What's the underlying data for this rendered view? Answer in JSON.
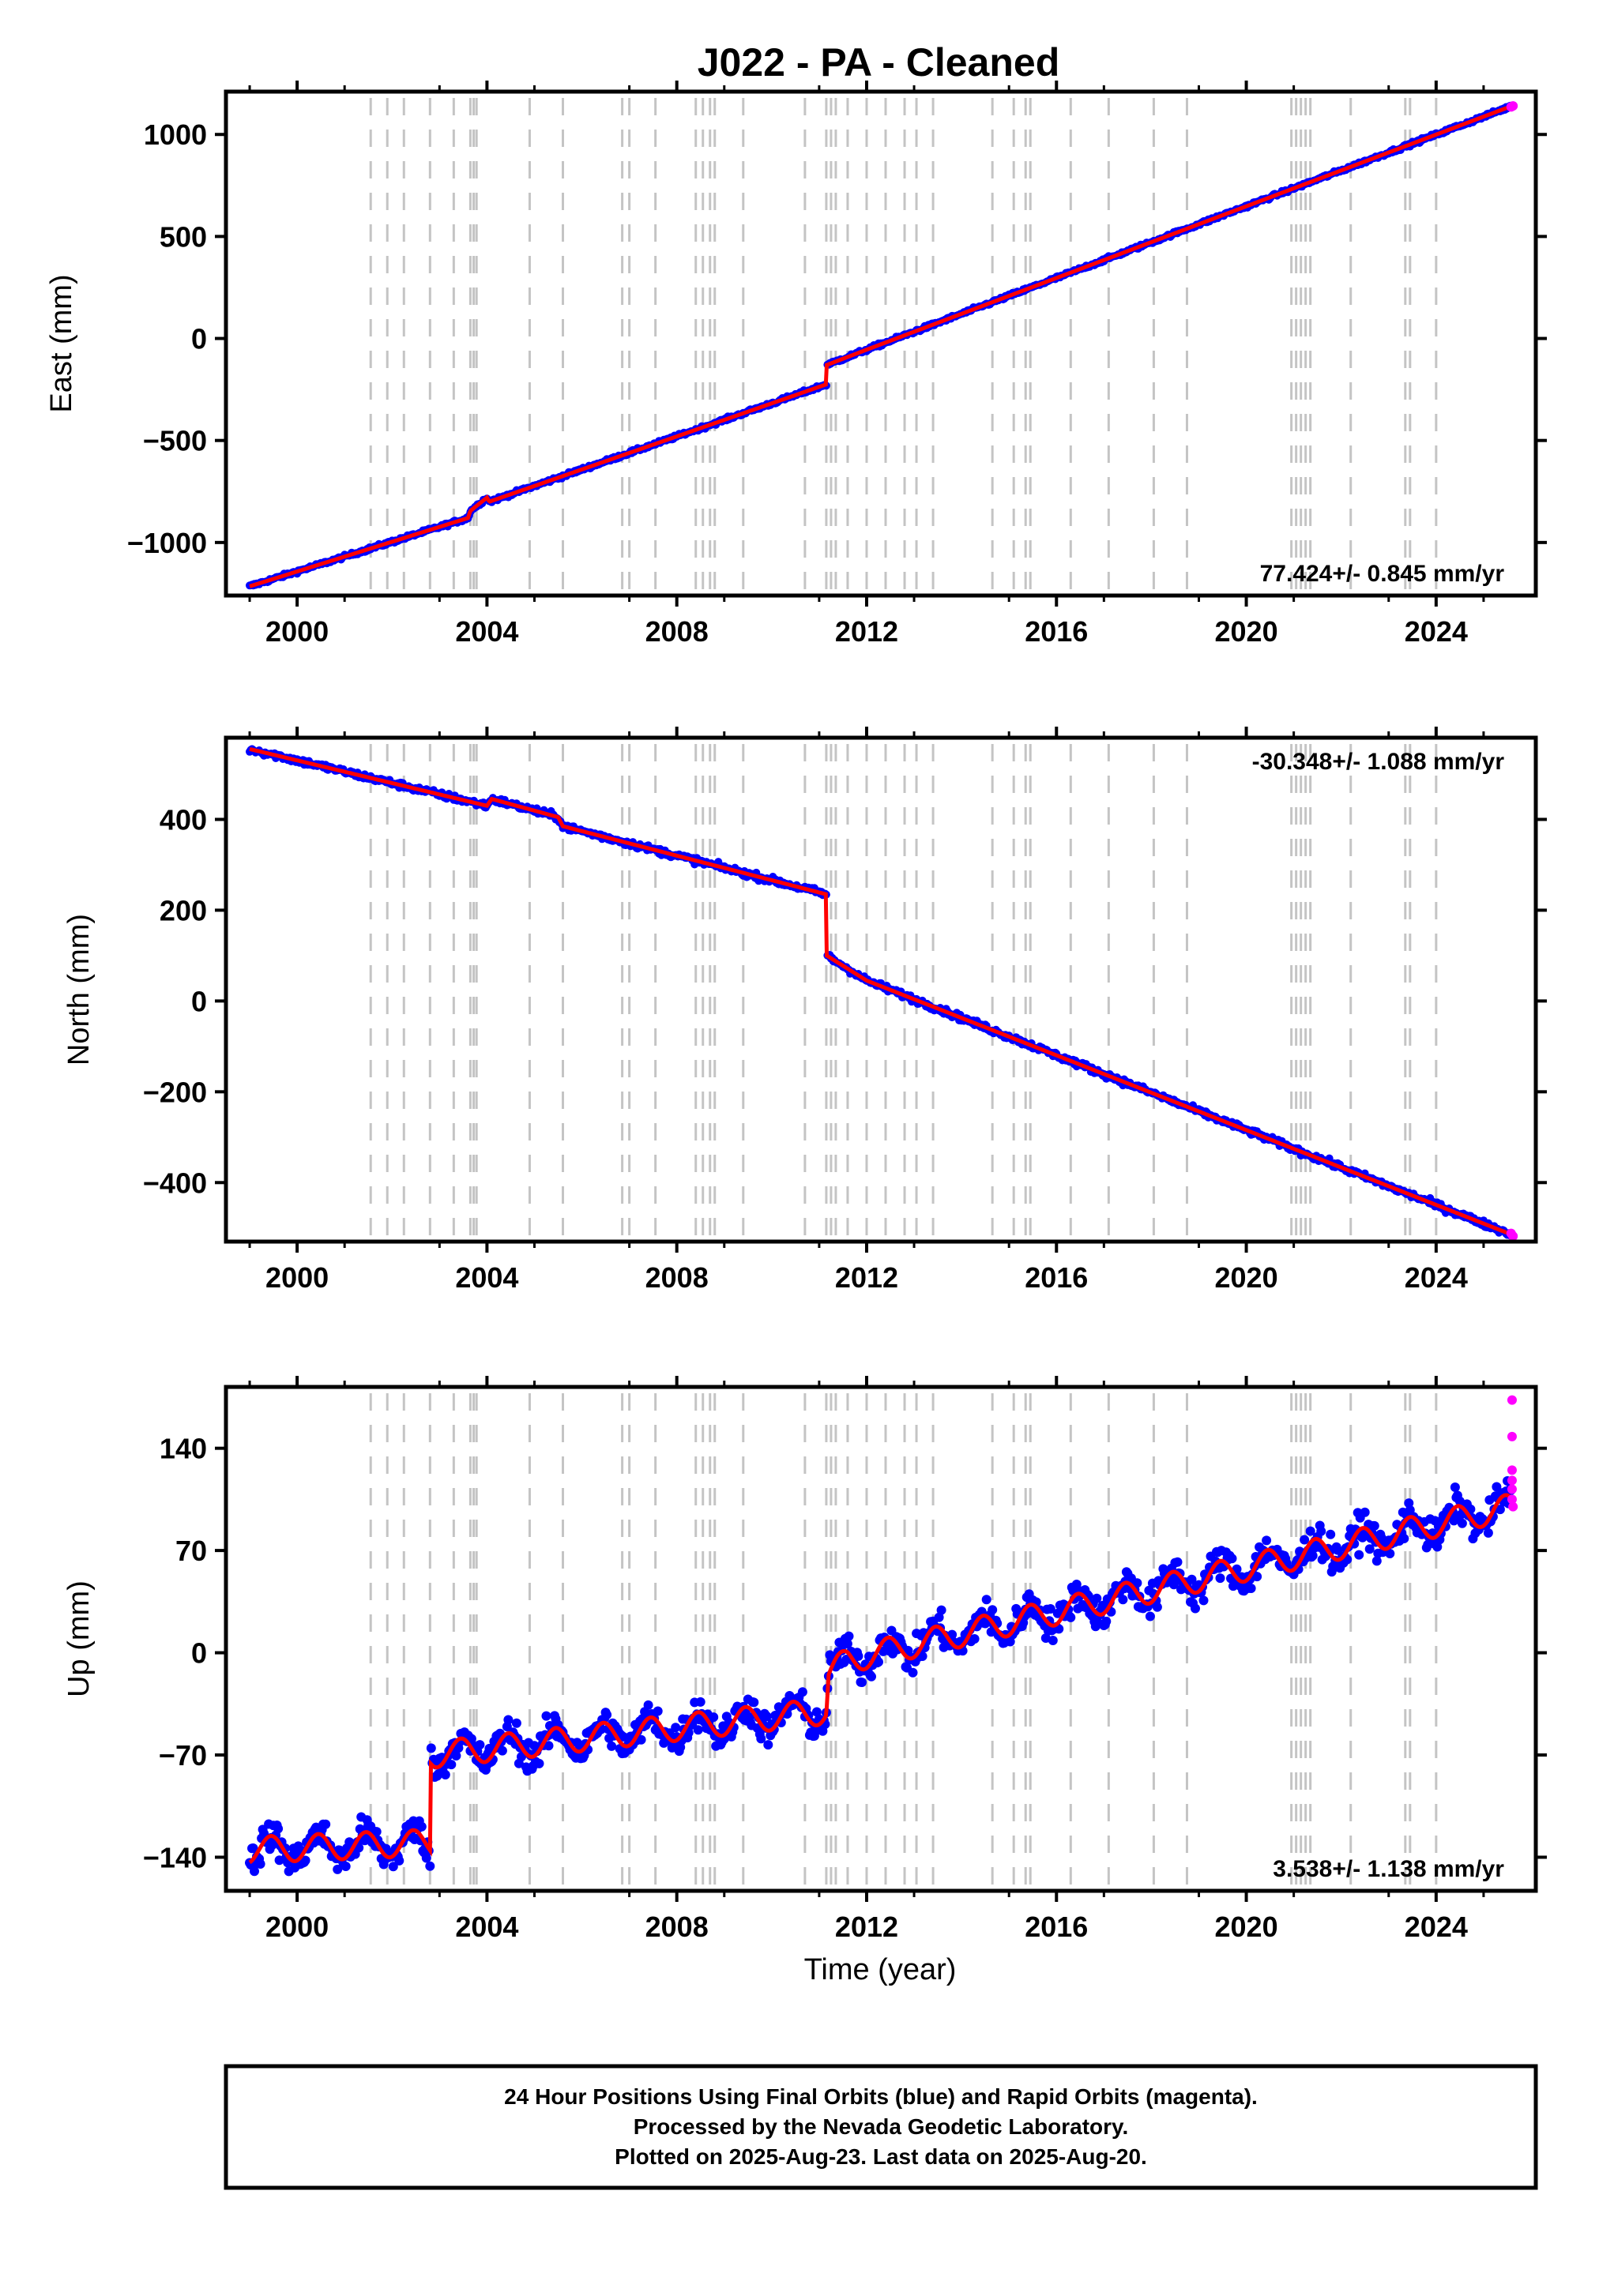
{
  "title": "J022  - PA - Cleaned",
  "colors": {
    "final": "#0000ff",
    "rapid": "#ff00ff",
    "model": "#ff0000",
    "event": "#c4c4c4",
    "frame": "#000000"
  },
  "x_axis": {
    "range": [
      1998.5,
      2026.1
    ],
    "ticks": [
      "2000",
      "2004",
      "2008",
      "2012",
      "2016",
      "2020",
      "2024"
    ],
    "tick_values": [
      2000,
      2004,
      2008,
      2012,
      2016,
      2020,
      2024
    ],
    "label": "Time (year)"
  },
  "events": [
    2001.55,
    2001.9,
    2002.25,
    2002.8,
    2003.3,
    2003.65,
    2003.72,
    2003.78,
    2004.9,
    2005.6,
    2006.85,
    2007.0,
    2007.55,
    2008.4,
    2008.55,
    2008.7,
    2008.8,
    2009.4,
    2010.7,
    2011.15,
    2011.25,
    2011.35,
    2011.6,
    2012.0,
    2012.4,
    2012.8,
    2013.05,
    2013.4,
    2014.65,
    2015.1,
    2015.35,
    2015.45,
    2016.3,
    2017.1,
    2018.05,
    2018.75,
    2020.95,
    2021.05,
    2021.15,
    2021.25,
    2021.35,
    2022.2,
    2023.35,
    2023.45,
    2024.0
  ],
  "chart_data": [
    {
      "type": "scatter",
      "id": "east",
      "ylabel": "East (mm)",
      "ylim": [
        -1260,
        1210
      ],
      "yticks": [
        {
          "label": "1000",
          "value": 1000
        },
        {
          "label": "500",
          "value": 500
        },
        {
          "label": "0",
          "value": 0
        },
        {
          "label": "−500",
          "value": -500
        },
        {
          "label": "−1000",
          "value": -1000
        }
      ],
      "rate": "77.424+/- 0.845 mm/yr",
      "rate_pos": "bottom-right",
      "model": {
        "x": [
          1999.0,
          2003.6,
          2003.65,
          2004.0,
          2004.05,
          2011.15,
          2011.16,
          2012.0,
          2025.6
        ],
        "y": [
          -1215,
          -880,
          -845,
          -780,
          -800,
          -225,
          -130,
          -55,
          1140
        ]
      },
      "noise": 6,
      "seasonal": 0,
      "rapid": [
        [
          2025.58,
          1135
        ],
        [
          2025.62,
          1140
        ]
      ]
    },
    {
      "type": "scatter",
      "id": "north",
      "ylabel": "North (mm)",
      "ylim": [
        -530,
        580
      ],
      "yticks": [
        {
          "label": "400",
          "value": 400
        },
        {
          "label": "200",
          "value": 200
        },
        {
          "label": "0",
          "value": 0
        },
        {
          "label": "−200",
          "value": -200
        },
        {
          "label": "−400",
          "value": -400
        }
      ],
      "rate": "-30.348+/- 1.088 mm/yr",
      "rate_pos": "top-right",
      "model": {
        "x": [
          1999.0,
          2004.0,
          2004.1,
          2005.5,
          2005.6,
          2011.15,
          2011.16,
          2012.0,
          2025.6
        ],
        "y": [
          555,
          430,
          445,
          405,
          385,
          235,
          100,
          45,
          -515
        ]
      },
      "noise": 5,
      "seasonal": 0,
      "rapid": [
        [
          2025.58,
          -512
        ],
        [
          2025.62,
          -518
        ]
      ]
    },
    {
      "type": "scatter",
      "id": "up",
      "ylabel": "Up (mm)",
      "ylim": [
        -163,
        182
      ],
      "yticks": [
        {
          "label": "140",
          "value": 140
        },
        {
          "label": "70",
          "value": 70
        },
        {
          "label": "0",
          "value": 0
        },
        {
          "label": "−70",
          "value": -70
        },
        {
          "label": "−140",
          "value": -140
        }
      ],
      "rate": "3.538+/- 1.138 mm/yr",
      "rate_pos": "bottom-right",
      "model": {
        "x": [
          1999.0,
          2002.8,
          2002.81,
          2011.15,
          2011.2,
          2011.6,
          2025.6
        ],
        "y": [
          -135,
          -130,
          -70,
          -40,
          -15,
          -5,
          100
        ]
      },
      "noise": 8,
      "seasonal": 9,
      "rapid": [
        [
          2025.6,
          173
        ],
        [
          2025.6,
          148
        ],
        [
          2025.6,
          125
        ],
        [
          2025.6,
          118
        ],
        [
          2025.6,
          112
        ],
        [
          2025.6,
          105
        ],
        [
          2025.62,
          100
        ]
      ]
    }
  ],
  "caption": [
    "24 Hour Positions Using Final Orbits (blue) and Rapid Orbits (magenta).",
    "Processed by the Nevada Geodetic Laboratory.",
    "Plotted on 2025-Aug-23. Last data on 2025-Aug-20."
  ]
}
